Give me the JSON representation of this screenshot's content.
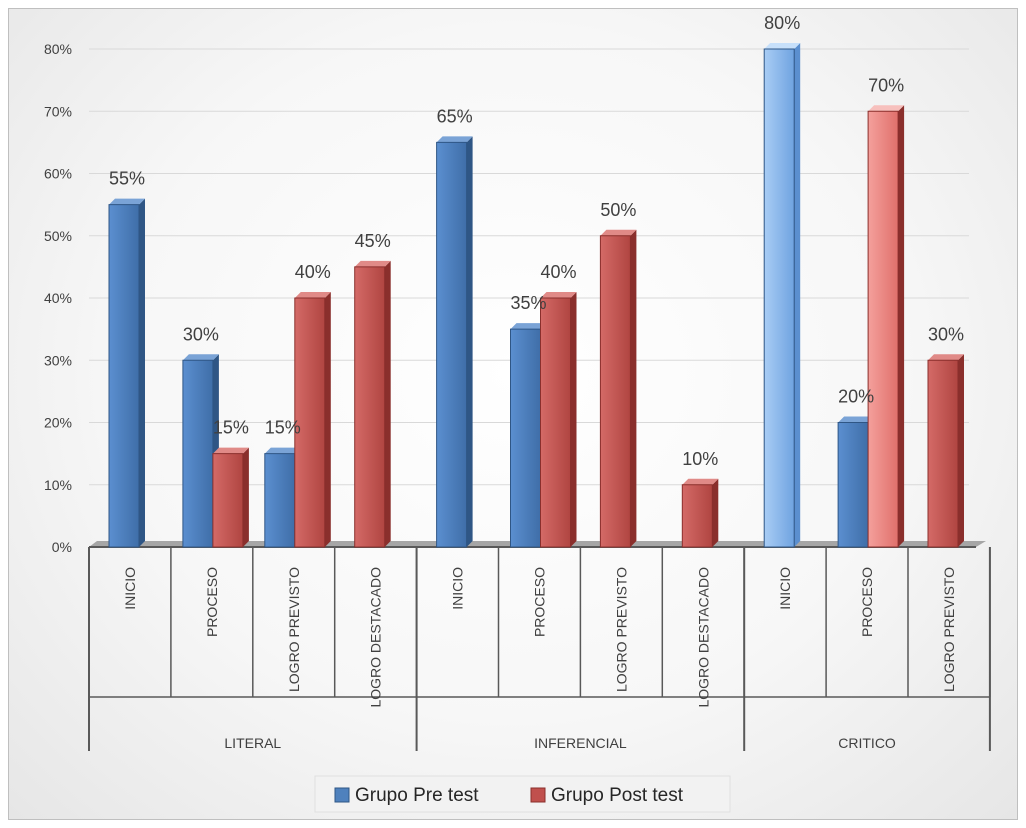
{
  "chart_data": {
    "type": "bar",
    "groups": [
      {
        "label": "LITERAL",
        "categories": [
          "INICIO",
          "PROCESO",
          "LOGRO PREVISTO",
          "LOGRO DESTACADO"
        ]
      },
      {
        "label": "INFERENCIAL",
        "categories": [
          "INICIO",
          "PROCESO",
          "LOGRO PREVISTO",
          "LOGRO DESTACADO"
        ]
      },
      {
        "label": "CRITICO",
        "categories": [
          "INICIO",
          "PROCESO",
          "LOGRO PREVISTO"
        ]
      }
    ],
    "series": [
      {
        "name": "Grupo Pre test",
        "color": "#4f81bd",
        "values": [
          55,
          30,
          15,
          null,
          65,
          35,
          null,
          null,
          80,
          20,
          null
        ],
        "labels": [
          "55%",
          "30%",
          "15%",
          "",
          "65%",
          "35%",
          "",
          "",
          "80%",
          "20%",
          ""
        ]
      },
      {
        "name": "Grupo Post test",
        "color": "#c0504d",
        "values": [
          null,
          15,
          40,
          45,
          null,
          40,
          50,
          10,
          null,
          70,
          30
        ],
        "labels": [
          "",
          "15%",
          "40%",
          "45%",
          "",
          "40%",
          "50%",
          "10%",
          "",
          "70%",
          "30%"
        ]
      }
    ],
    "ylim": [
      0,
      80
    ],
    "yticks": [
      "0%",
      "10%",
      "20%",
      "30%",
      "40%",
      "50%",
      "60%",
      "70%",
      "80%"
    ],
    "grid": true,
    "legend_position": "bottom"
  }
}
